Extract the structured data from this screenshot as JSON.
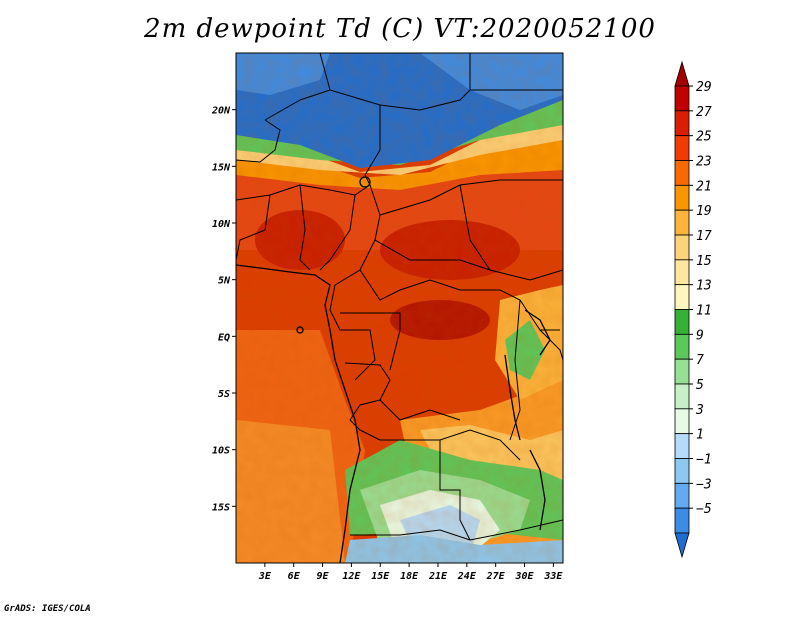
{
  "title": "2m dewpoint Td (C) VT:2020052100",
  "credit": "GrADS: IGES/COLA",
  "map": {
    "lon_range": [
      0,
      34
    ],
    "lat_range": [
      -20,
      25
    ],
    "x_ticks": [
      "3E",
      "6E",
      "9E",
      "12E",
      "15E",
      "18E",
      "21E",
      "24E",
      "27E",
      "30E",
      "33E"
    ],
    "x_tick_values": [
      3,
      6,
      9,
      12,
      15,
      18,
      21,
      24,
      27,
      30,
      33
    ],
    "y_ticks": [
      "20N",
      "15N",
      "10N",
      "5N",
      "EQ",
      "5S",
      "10S",
      "15S"
    ],
    "y_tick_values": [
      20,
      15,
      10,
      5,
      0,
      -5,
      -10,
      -15
    ]
  },
  "colorbar": {
    "labels": [
      "29",
      "27",
      "25",
      "23",
      "21",
      "19",
      "17",
      "15",
      "13",
      "11",
      "9",
      "7",
      "5",
      "3",
      "1",
      "−1",
      "−3",
      "−5"
    ],
    "colors": [
      "#a50000",
      "#c30000",
      "#dc1e00",
      "#f03c00",
      "#f86a00",
      "#fa9600",
      "#fcb43c",
      "#fcd27a",
      "#fde6a0",
      "#fff5be",
      "#36b036",
      "#5cc85c",
      "#96e096",
      "#c8f0c8",
      "#e6fae6",
      "#b4dcfa",
      "#8cc8f0",
      "#64aaf0",
      "#3c8ce6",
      "#1e6ed2"
    ]
  }
}
